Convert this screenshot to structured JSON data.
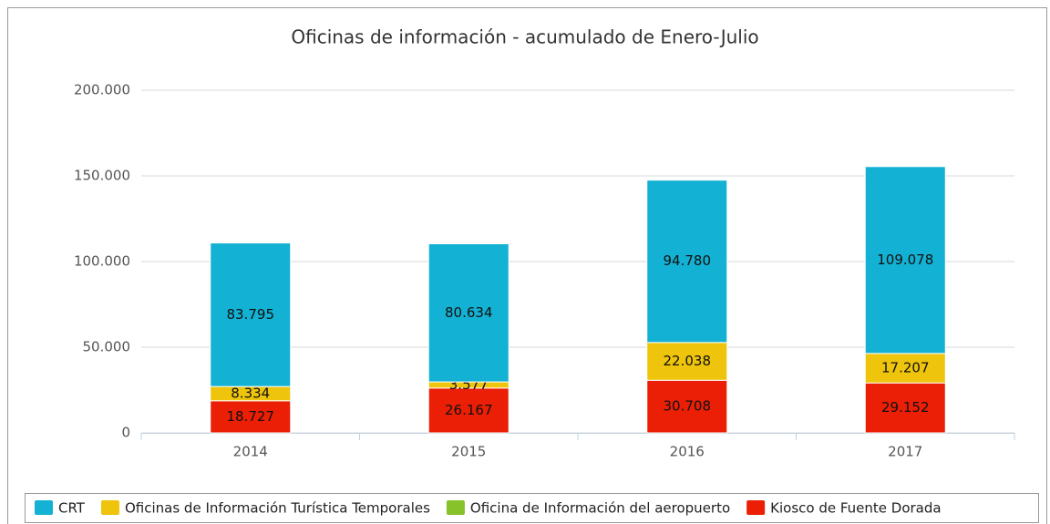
{
  "chart_data": {
    "type": "stacked_bar",
    "title": "Oficinas de información - acumulado de Enero-Julio",
    "categories": [
      "2014",
      "2015",
      "2016",
      "2017"
    ],
    "series": [
      {
        "name": "CRT",
        "color": "#13b1d3",
        "values": [
          83795,
          80634,
          94780,
          109078
        ],
        "value_labels": [
          "83.795",
          "80.634",
          "94.780",
          "109.078"
        ]
      },
      {
        "name": "Oficinas de Información Turística Temporales",
        "color": "#eec40c",
        "values": [
          8334,
          3577,
          22038,
          17207
        ],
        "value_labels": [
          "8.334",
          "3.577",
          "22.038",
          "17.207"
        ]
      },
      {
        "name": "Oficina de Información del aeropuerto",
        "color": "#87c22a",
        "values": [
          null,
          null,
          null,
          null
        ]
      },
      {
        "name": "Kiosco de Fuente Dorada",
        "color": "#ea1f05",
        "values": [
          18727,
          26167,
          30708,
          29152
        ],
        "value_labels": [
          "18.727",
          "26.167",
          "30.708",
          "29.152"
        ]
      }
    ],
    "ylim": [
      0,
      200000
    ],
    "yticks": [
      0,
      {
        "value": 50000,
        "label": "50.000"
      },
      {
        "value": 100000,
        "label": "100.000"
      },
      {
        "value": 150000,
        "label": "150.000"
      },
      {
        "value": 200000,
        "label": "200.000"
      }
    ],
    "grid": true,
    "legend": "bottom"
  }
}
